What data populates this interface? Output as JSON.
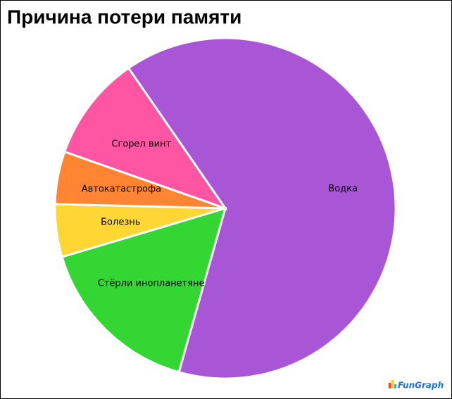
{
  "chart_data": {
    "type": "pie",
    "title": "Причина потери памяти",
    "categories": [
      "Водка",
      "Стёрли инопланетяне",
      "Болезнь",
      "Автокатастрофа",
      "Сгорел винт"
    ],
    "values": [
      64,
      16,
      5,
      5,
      10
    ],
    "colors": [
      "#a855d6",
      "#33d633",
      "#ffd633",
      "#ff8533",
      "#ff55a3"
    ],
    "watermark": "FunGraph"
  }
}
